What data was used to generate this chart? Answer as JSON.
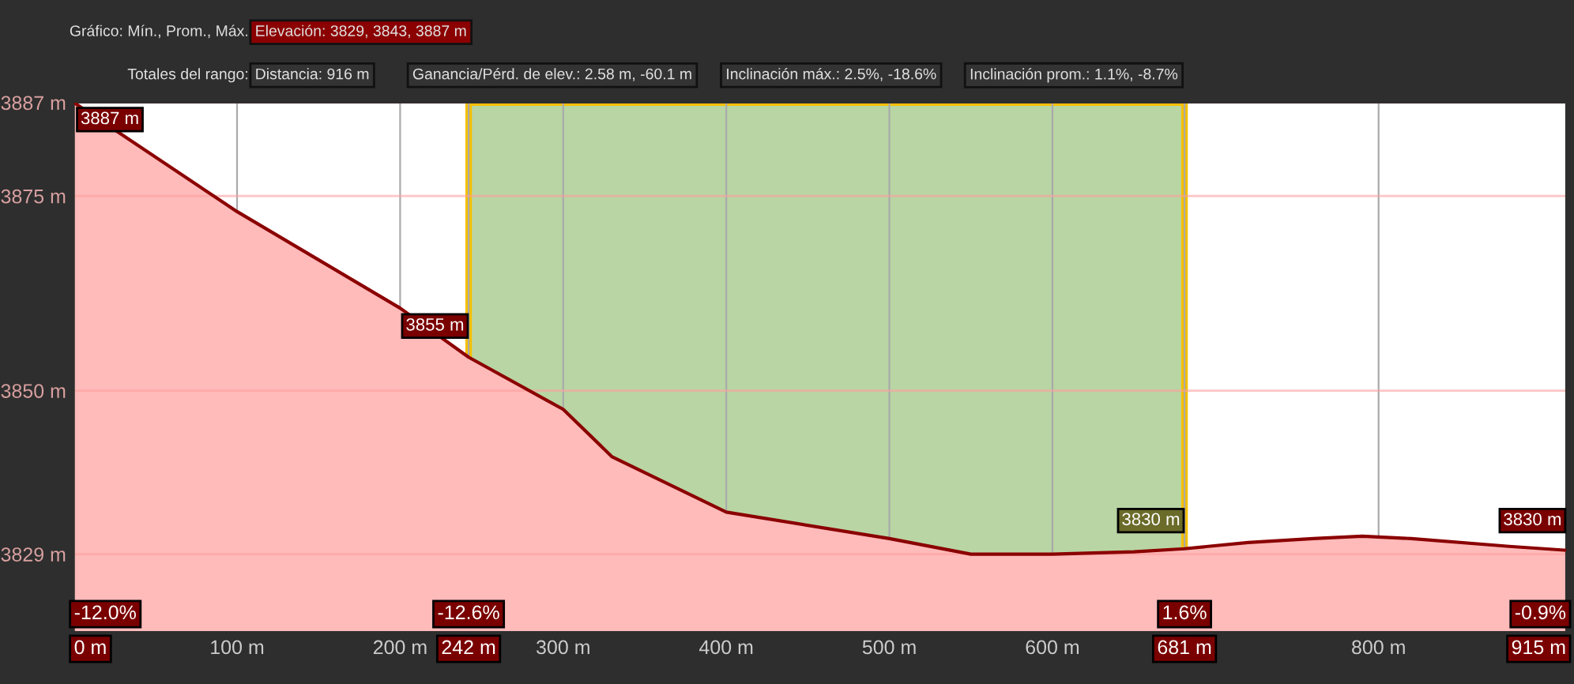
{
  "chart_data": {
    "type": "area",
    "x": [
      0,
      100,
      200,
      242,
      300,
      330,
      400,
      500,
      550,
      600,
      650,
      681,
      720,
      760,
      790,
      820,
      880,
      915
    ],
    "series": [
      {
        "color": "#8b0000",
        "values": [
          3887,
          3873,
          3860.6,
          3854.3,
          3847.6,
          3841.5,
          3834.4,
          3831,
          3829,
          3829,
          3829.3,
          3829.7,
          3830.5,
          3831,
          3831.3,
          3831,
          3830,
          3829.5
        ]
      }
    ],
    "xlim": [
      0,
      915
    ],
    "ylim": [
      3819,
      3887
    ],
    "xticks": [
      {
        "value": 0,
        "label": "0 m"
      },
      {
        "value": 100,
        "label": "100 m"
      },
      {
        "value": 200,
        "label": "200 m"
      },
      {
        "value": 242,
        "label": "242 m"
      },
      {
        "value": 300,
        "label": "300 m"
      },
      {
        "value": 400,
        "label": "400 m"
      },
      {
        "value": 500,
        "label": "500 m"
      },
      {
        "value": 600,
        "label": "600 m"
      },
      {
        "value": 681,
        "label": "681 m"
      },
      {
        "value": 800,
        "label": "800 m"
      },
      {
        "value": 915,
        "label": "915 m"
      }
    ],
    "yticks": [
      {
        "value": 3829,
        "label": "3829 m"
      },
      {
        "value": 3850,
        "label": "3850 m"
      },
      {
        "value": 3875,
        "label": "3875 m"
      },
      {
        "value": 3887,
        "label": "3887 m"
      }
    ],
    "grid": true,
    "bands": [
      {
        "axis": "x",
        "from": 242,
        "to": 681,
        "color": "#b8d5a3"
      }
    ],
    "annotations": [
      "Gráfico: Mín., Prom., Máx.",
      "Elevación: 3829, 3843, 3887 m",
      "Totales del rango:",
      "Distancia: 916 m",
      "Ganancia/Pérd. de elev.: 2.58 m, -60.1 m",
      "Inclinación máx.: 2.5%, -18.6%",
      "Inclinación prom.: 1.1%, -8.7%",
      {
        "text": "3887 m",
        "x": 0,
        "y": 3887
      },
      {
        "text": "3855 m",
        "x": 242,
        "y": 3855
      },
      {
        "text": "3830 m",
        "x": 681,
        "y": 3830
      },
      {
        "text": "3830 m",
        "x": 915,
        "y": 3830
      },
      {
        "text": "-12.0%",
        "x": 0
      },
      {
        "text": "-12.6%",
        "x": 242
      },
      {
        "text": "1.6%",
        "x": 681
      },
      {
        "text": "-0.9%",
        "x": 915
      }
    ]
  }
}
